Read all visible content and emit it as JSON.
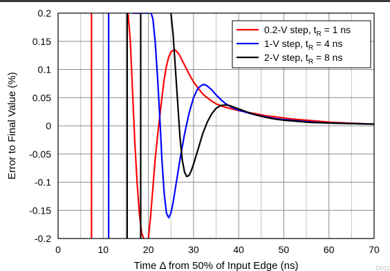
{
  "chart_data": {
    "type": "line",
    "xlabel": "Time Δ from 50% of Input Edge (ns)",
    "ylabel": "Error to Final Value (%)",
    "xlim": [
      0,
      70
    ],
    "ylim": [
      -0.2,
      0.2
    ],
    "x_ticks": [
      "0",
      "10",
      "20",
      "30",
      "40",
      "50",
      "60",
      "70"
    ],
    "y_ticks": [
      "0.2",
      "0.15",
      "0.1",
      "0.05",
      "0",
      "-0.05",
      "-0.1",
      "-0.15",
      "-0.2"
    ],
    "grid": true,
    "legend_position": "top-right",
    "figure_code": "D011",
    "series": [
      {
        "name": "0.2-V step, t",
        "name_sub": "R",
        "name_suffix": " = 1 ns",
        "color": "#ff0000",
        "points": [
          [
            7.4,
            -0.2
          ],
          [
            7.4,
            0.2
          ],
          null,
          [
            15.5,
            0.2
          ],
          [
            16.0,
            0.15
          ],
          [
            16.5,
            0.06
          ],
          [
            17.0,
            -0.03
          ],
          [
            17.5,
            -0.1
          ],
          [
            18.0,
            -0.155
          ],
          [
            18.5,
            -0.19
          ],
          [
            19.2,
            -0.205
          ],
          [
            20.0,
            -0.2
          ],
          [
            20.5,
            -0.16
          ],
          [
            21.0,
            -0.11
          ],
          [
            21.5,
            -0.06
          ],
          [
            22.0,
            -0.02
          ],
          [
            22.5,
            0.015
          ],
          [
            23.0,
            0.05
          ],
          [
            23.5,
            0.082
          ],
          [
            24.0,
            0.106
          ],
          [
            24.5,
            0.122
          ],
          [
            25.0,
            0.131
          ],
          [
            25.5,
            0.134
          ],
          [
            26.0,
            0.134
          ],
          [
            26.5,
            0.13
          ],
          [
            27.0,
            0.124
          ],
          [
            28.0,
            0.108
          ],
          [
            29.0,
            0.092
          ],
          [
            30.0,
            0.078
          ],
          [
            31.0,
            0.067
          ],
          [
            32.0,
            0.057
          ],
          [
            33.0,
            0.05
          ],
          [
            34.0,
            0.044
          ],
          [
            35.0,
            0.039
          ],
          [
            36.0,
            0.036
          ],
          [
            37.0,
            0.033
          ],
          [
            38.0,
            0.031
          ],
          [
            39.0,
            0.029
          ],
          [
            40.0,
            0.027
          ],
          [
            42.0,
            0.024
          ],
          [
            44.0,
            0.021
          ],
          [
            46.0,
            0.018
          ],
          [
            48.0,
            0.016
          ],
          [
            50.0,
            0.014
          ],
          [
            52.0,
            0.012
          ],
          [
            55.0,
            0.01
          ],
          [
            58.0,
            0.008
          ],
          [
            61.0,
            0.006
          ],
          [
            64.0,
            0.005
          ],
          [
            67.0,
            0.004
          ],
          [
            70.0,
            0.003
          ]
        ]
      },
      {
        "name": "1-V step, t",
        "name_sub": "R",
        "name_suffix": " = 4 ns",
        "color": "#0000ff",
        "points": [
          [
            11.2,
            -0.2
          ],
          [
            11.2,
            0.2
          ],
          null,
          [
            16.4,
            0.2
          ],
          [
            17.8,
            0.2
          ],
          [
            18.5,
            0.2
          ],
          [
            19.2,
            0.2
          ],
          [
            20.0,
            0.2
          ],
          [
            20.6,
            0.2
          ],
          [
            21.0,
            0.19
          ],
          [
            21.5,
            0.15
          ],
          [
            22.0,
            0.09
          ],
          [
            22.5,
            0.02
          ],
          [
            23.0,
            -0.06
          ],
          [
            23.5,
            -0.12
          ],
          [
            24.0,
            -0.155
          ],
          [
            24.5,
            -0.163
          ],
          [
            25.0,
            -0.155
          ],
          [
            25.5,
            -0.135
          ],
          [
            26.0,
            -0.11
          ],
          [
            27.0,
            -0.06
          ],
          [
            28.0,
            -0.015
          ],
          [
            29.0,
            0.022
          ],
          [
            30.0,
            0.05
          ],
          [
            31.0,
            0.067
          ],
          [
            32.0,
            0.073
          ],
          [
            32.5,
            0.073
          ],
          [
            33.0,
            0.071
          ],
          [
            34.0,
            0.064
          ],
          [
            35.0,
            0.055
          ],
          [
            36.0,
            0.047
          ],
          [
            37.0,
            0.04
          ],
          [
            38.0,
            0.035
          ],
          [
            39.0,
            0.031
          ],
          [
            40.0,
            0.028
          ],
          [
            42.0,
            0.023
          ],
          [
            44.0,
            0.019
          ],
          [
            46.0,
            0.016
          ],
          [
            48.0,
            0.013
          ],
          [
            50.0,
            0.011
          ],
          [
            53.0,
            0.009
          ],
          [
            56.0,
            0.007
          ],
          [
            60.0,
            0.005
          ],
          [
            65.0,
            0.004
          ],
          [
            70.0,
            0.003
          ]
        ]
      },
      {
        "name": "2-V step, t",
        "name_sub": "R",
        "name_suffix": " = 8 ns",
        "color": "#000000",
        "points": [
          [
            15.3,
            -0.2
          ],
          [
            15.3,
            0.2
          ],
          null,
          [
            18.3,
            -0.2
          ],
          [
            18.3,
            0.2
          ],
          null,
          [
            25.0,
            0.2
          ],
          [
            25.5,
            0.16
          ],
          [
            26.0,
            0.1
          ],
          [
            26.5,
            0.04
          ],
          [
            27.0,
            -0.02
          ],
          [
            27.5,
            -0.06
          ],
          [
            28.0,
            -0.082
          ],
          [
            28.5,
            -0.09
          ],
          [
            29.0,
            -0.088
          ],
          [
            29.5,
            -0.08
          ],
          [
            30.0,
            -0.068
          ],
          [
            31.0,
            -0.042
          ],
          [
            32.0,
            -0.015
          ],
          [
            33.0,
            0.006
          ],
          [
            34.0,
            0.021
          ],
          [
            35.0,
            0.031
          ],
          [
            36.0,
            0.036
          ],
          [
            37.0,
            0.037
          ],
          [
            38.0,
            0.036
          ],
          [
            39.0,
            0.033
          ],
          [
            40.0,
            0.03
          ],
          [
            42.0,
            0.024
          ],
          [
            44.0,
            0.019
          ],
          [
            46.0,
            0.015
          ],
          [
            48.0,
            0.012
          ],
          [
            50.0,
            0.01
          ],
          [
            53.0,
            0.008
          ],
          [
            56.0,
            0.006
          ],
          [
            60.0,
            0.005
          ],
          [
            65.0,
            0.004
          ],
          [
            70.0,
            0.003
          ]
        ]
      }
    ]
  }
}
